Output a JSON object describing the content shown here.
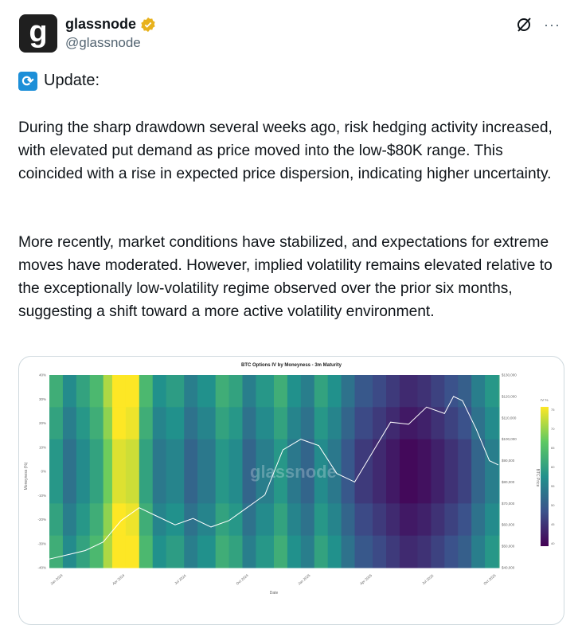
{
  "account": {
    "avatar_letter": "g",
    "display_name": "glassnode",
    "handle": "@glassnode",
    "verified_color": "#e8b21d"
  },
  "post": {
    "update_label": "Update:",
    "paragraph1": "During the sharp drawdown several weeks ago, risk hedging activity increased, with elevated put demand as price moved into the low-$80K range. This coincided with a rise in expected price dispersion, indicating higher uncertainty.",
    "paragraph2": "More recently, market conditions have stabilized, and expectations for extreme moves have moderated. However, implied volatility remains elevated relative to the exceptionally low-volatility regime observed over the prior six months, suggesting a shift toward a more active volatility environment."
  },
  "icons": {
    "grok": "grok-icon",
    "more": "more-icon",
    "more_glyph": "···",
    "update": "refresh-icon"
  },
  "chart_data": {
    "type": "heatmap",
    "title": "BTC Options IV by Moneyness - 3m Maturity",
    "xlabel": "Date",
    "ylabel": "Moneyness (%)",
    "y2label": "BTC Price",
    "watermark": "glassnode",
    "x_ticks": [
      "Jan 2024",
      "Apr 2024",
      "Jul 2024",
      "Oct 2024",
      "Jan 2025",
      "Apr 2025",
      "Jul 2025",
      "Oct 2025"
    ],
    "y_ticks": [
      "40%",
      "30%",
      "20%",
      "10%",
      "0%",
      "-10%",
      "-20%",
      "-30%",
      "-40%"
    ],
    "ylim": [
      -40,
      40
    ],
    "y2_ticks": [
      "$130,000",
      "$120,000",
      "$110,000",
      "$100,000",
      "$90,000",
      "$80,000",
      "$70,000",
      "$60,000",
      "$50,000",
      "$40,000"
    ],
    "y2lim": [
      40000,
      130000
    ],
    "colorbar_label": "IV %",
    "colorbar_ticks": [
      "75",
      "70",
      "65",
      "60",
      "55",
      "50",
      "45",
      "40"
    ],
    "colorbar_range": [
      38,
      78
    ],
    "iv_bands": [
      {
        "x": 0.0,
        "iv": 60
      },
      {
        "x": 0.03,
        "iv": 54
      },
      {
        "x": 0.06,
        "iv": 58
      },
      {
        "x": 0.09,
        "iv": 62
      },
      {
        "x": 0.12,
        "iv": 70
      },
      {
        "x": 0.14,
        "iv": 77
      },
      {
        "x": 0.17,
        "iv": 76
      },
      {
        "x": 0.2,
        "iv": 62
      },
      {
        "x": 0.23,
        "iv": 55
      },
      {
        "x": 0.26,
        "iv": 57
      },
      {
        "x": 0.3,
        "iv": 52
      },
      {
        "x": 0.33,
        "iv": 55
      },
      {
        "x": 0.37,
        "iv": 60
      },
      {
        "x": 0.4,
        "iv": 58
      },
      {
        "x": 0.43,
        "iv": 52
      },
      {
        "x": 0.46,
        "iv": 56
      },
      {
        "x": 0.5,
        "iv": 60
      },
      {
        "x": 0.53,
        "iv": 55
      },
      {
        "x": 0.56,
        "iv": 52
      },
      {
        "x": 0.59,
        "iv": 58
      },
      {
        "x": 0.62,
        "iv": 55
      },
      {
        "x": 0.65,
        "iv": 50
      },
      {
        "x": 0.68,
        "iv": 46
      },
      {
        "x": 0.72,
        "iv": 44
      },
      {
        "x": 0.75,
        "iv": 42
      },
      {
        "x": 0.78,
        "iv": 40
      },
      {
        "x": 0.82,
        "iv": 41
      },
      {
        "x": 0.85,
        "iv": 43
      },
      {
        "x": 0.88,
        "iv": 45
      },
      {
        "x": 0.91,
        "iv": 47
      },
      {
        "x": 0.94,
        "iv": 52
      },
      {
        "x": 0.97,
        "iv": 56
      },
      {
        "x": 1.0,
        "iv": 58
      }
    ],
    "price_series": {
      "name": "BTC Price",
      "x": [
        0.0,
        0.04,
        0.08,
        0.12,
        0.16,
        0.2,
        0.24,
        0.28,
        0.32,
        0.36,
        0.4,
        0.44,
        0.48,
        0.52,
        0.56,
        0.6,
        0.64,
        0.68,
        0.72,
        0.76,
        0.8,
        0.84,
        0.88,
        0.9,
        0.92,
        0.95,
        0.98,
        1.0
      ],
      "values": [
        44000,
        46000,
        48000,
        52000,
        62000,
        68000,
        64000,
        60000,
        63000,
        59000,
        62000,
        68000,
        74000,
        95000,
        100000,
        97000,
        84000,
        80000,
        94000,
        108000,
        107000,
        115000,
        112000,
        120000,
        118000,
        105000,
        90000,
        88000
      ]
    }
  }
}
